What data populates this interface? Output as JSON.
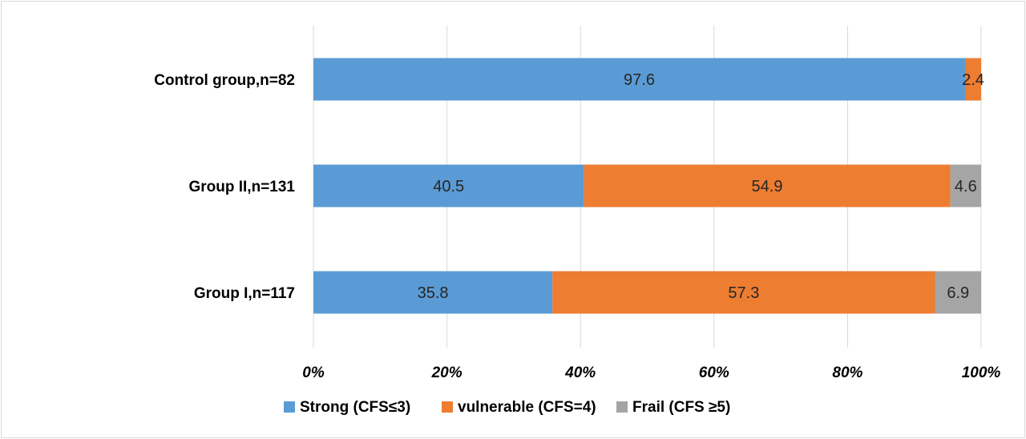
{
  "chart_data": {
    "type": "bar",
    "orientation": "horizontal",
    "stacked": "percent",
    "categories": [
      "Control group,n=82",
      "Group II,n=131",
      "Group I,n=117"
    ],
    "series": [
      {
        "name": "Strong (CFS≤3)",
        "color": "#5b9bd5",
        "values": [
          97.6,
          40.5,
          35.8
        ]
      },
      {
        "name": "vulnerable (CFS=4)",
        "color": "#ed7d31",
        "values": [
          2.4,
          54.9,
          57.3
        ]
      },
      {
        "name": "Frail (CFS ≥5)",
        "color": "#a5a5a5",
        "values": [
          null,
          4.6,
          6.9
        ]
      }
    ],
    "data_labels": [
      [
        "97.6",
        "40.5",
        "35.8"
      ],
      [
        "2.4",
        "54.9",
        "57.3"
      ],
      [
        "",
        "4.6",
        "6.9"
      ]
    ],
    "xlim": [
      0,
      100
    ],
    "xticks": [
      "0%",
      "20%",
      "40%",
      "60%",
      "80%",
      "100%"
    ],
    "grid": "vertical",
    "legend_position": "bottom"
  }
}
